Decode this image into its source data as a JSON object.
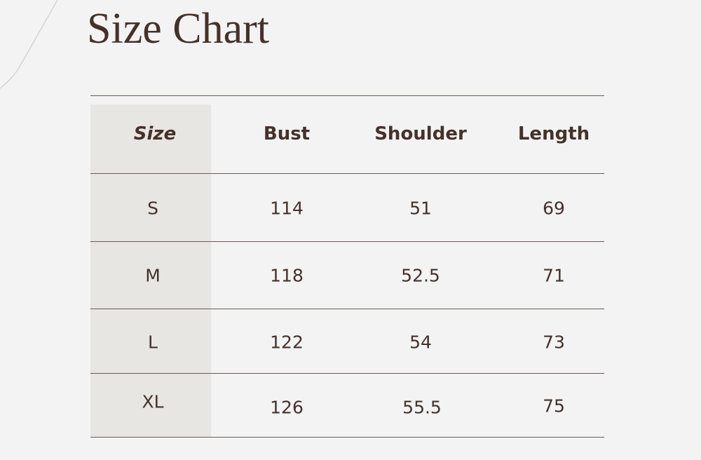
{
  "title": "Size Chart",
  "table": {
    "headers": [
      "Size",
      "Bust",
      "Shoulder",
      "Length"
    ],
    "rows": [
      [
        "S",
        "114",
        "51",
        "69"
      ],
      [
        "M",
        "118",
        "52.5",
        "71"
      ],
      [
        "L",
        "122",
        "54",
        "73"
      ],
      [
        "XL",
        "126",
        "55.5",
        "75"
      ]
    ]
  },
  "colors": {
    "text": "#46312a",
    "background": "#f3f3f3",
    "size_column": "#e8e6e2",
    "rule": "#6d5a52"
  }
}
